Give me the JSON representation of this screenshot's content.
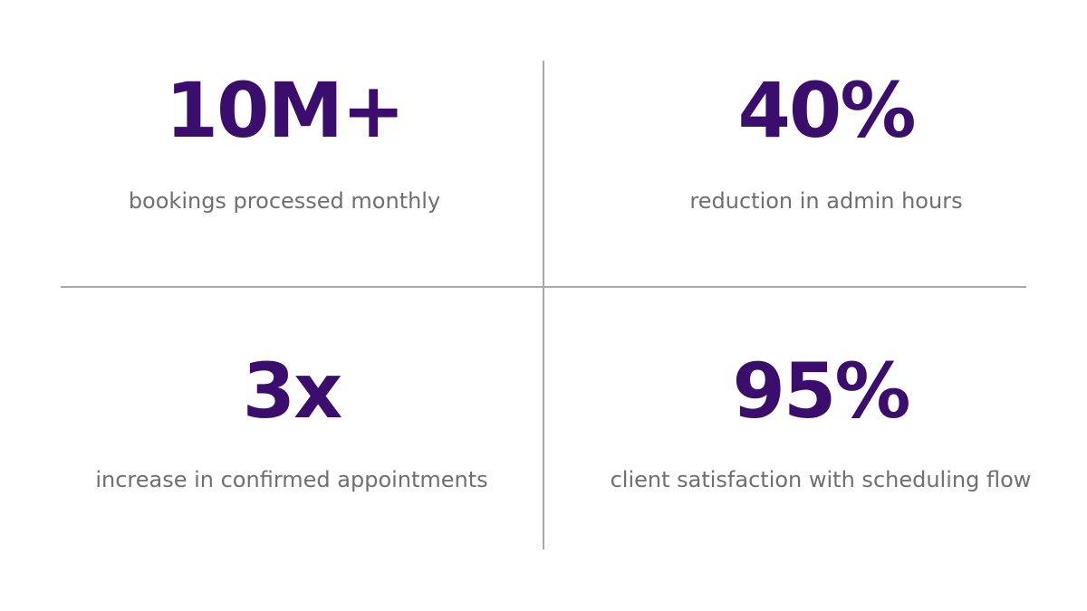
{
  "colors": {
    "value": "#3b0d6c",
    "label": "#6f6f6f",
    "divider": "#a9a9a9",
    "background": "#ffffff"
  },
  "stats": [
    {
      "value": "10M+",
      "label": "bookings processed monthly"
    },
    {
      "value": "40%",
      "label": "reduction in admin hours"
    },
    {
      "value": "3x",
      "label": "increase in confirmed appointments"
    },
    {
      "value": "95%",
      "label": "client satisfaction with scheduling flow"
    }
  ]
}
